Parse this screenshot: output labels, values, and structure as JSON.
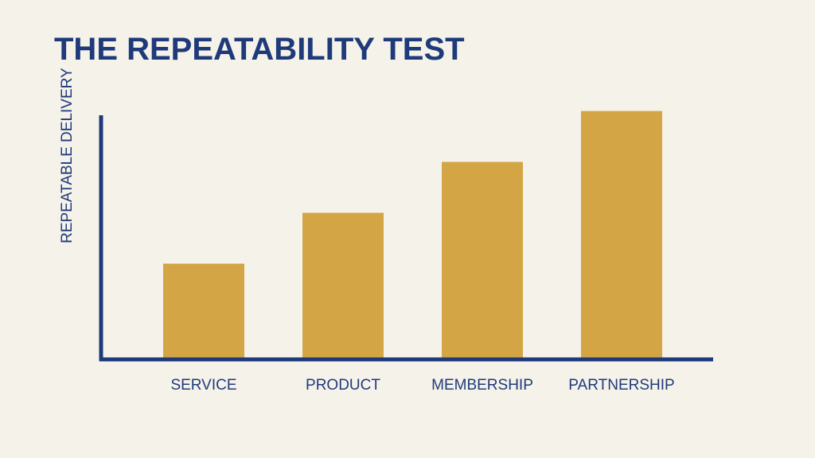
{
  "colors": {
    "background": "#F5F2EA",
    "navy": "#1F3A7A",
    "bar": "#D4A545"
  },
  "chart_data": {
    "type": "bar",
    "title": "THE REPEATABILITY TEST",
    "xlabel": "",
    "ylabel": "REPEATABLE DELIVERY",
    "categories": [
      "SERVICE",
      "PRODUCT",
      "MEMBERSHIP",
      "PARTNERSHIP"
    ],
    "values": [
      37,
      57,
      77,
      97
    ],
    "ylim": [
      0,
      100
    ],
    "grid": false,
    "legend": "none"
  }
}
